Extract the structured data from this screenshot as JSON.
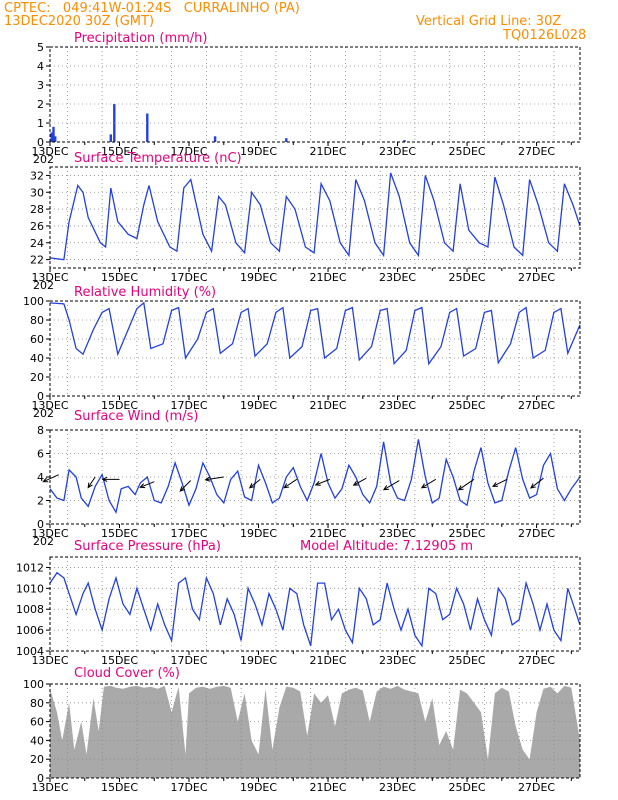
{
  "header": {
    "left_line1": "CPTEC:   049:41W-01:24S   CURRALINHO (PA)",
    "left_line2": "13DEC2020 30Z (GMT)",
    "right_line1": "Vertical Grid Line: 30Z",
    "right_line2": "TQ0126L028"
  },
  "x_axis": {
    "labels": [
      "13DEC",
      "15DEC",
      "17DEC",
      "19DEC",
      "21DEC",
      "23DEC",
      "25DEC",
      "27DEC"
    ],
    "label_days": [
      0,
      2,
      4,
      6,
      8,
      10,
      12,
      14
    ],
    "range_days": [
      0,
      15.25
    ],
    "below_label": "202"
  },
  "colors": {
    "line": "#2340e0",
    "title": "#e6007e",
    "header": "#ff8c00",
    "cloud": "#a9a9a9"
  },
  "chart_data": [
    {
      "type": "bar",
      "title": "Precipitation (mm/h)",
      "ylim": [
        0,
        5
      ],
      "yticks": [
        "0",
        "1",
        "2",
        "3",
        "4",
        "5"
      ],
      "series": [
        {
          "x_days": [
            0.05,
            0.1,
            0.15,
            1.75,
            1.85,
            2.8,
            4.75,
            6.8,
            10.2
          ],
          "values": [
            0.5,
            0.8,
            0.3,
            0.4,
            2.0,
            1.5,
            0.3,
            0.2,
            0.1
          ]
        }
      ]
    },
    {
      "type": "line",
      "title": "Surface Temperature (nC)",
      "ylim": [
        21,
        33
      ],
      "yticks": [
        "22",
        "24",
        "26",
        "28",
        "30",
        "32"
      ],
      "series": [
        {
          "x_days": [
            0,
            0.4,
            0.55,
            0.8,
            0.95,
            1.1,
            1.45,
            1.6,
            1.75,
            1.95,
            2.25,
            2.5,
            2.7,
            2.85,
            3.1,
            3.45,
            3.65,
            3.85,
            4.05,
            4.4,
            4.65,
            4.85,
            5.05,
            5.35,
            5.6,
            5.8,
            6.05,
            6.35,
            6.6,
            6.8,
            7.05,
            7.35,
            7.6,
            7.8,
            8.05,
            8.35,
            8.6,
            8.8,
            9.05,
            9.35,
            9.6,
            9.8,
            10.05,
            10.35,
            10.6,
            10.8,
            11.05,
            11.35,
            11.6,
            11.8,
            12.05,
            12.35,
            12.6,
            12.8,
            13.05,
            13.35,
            13.6,
            13.8,
            14.05,
            14.35,
            14.6,
            14.8,
            15.05,
            15.25
          ],
          "values": [
            22.2,
            22.0,
            26.5,
            30.8,
            30.0,
            27.0,
            24.0,
            23.5,
            30.5,
            26.5,
            25.0,
            24.5,
            28.5,
            30.8,
            26.5,
            23.5,
            23.0,
            30.5,
            31.5,
            25.0,
            23.0,
            29.5,
            28.5,
            24.0,
            22.8,
            30.0,
            28.5,
            24.0,
            23.0,
            29.5,
            28.0,
            23.5,
            22.8,
            31.0,
            29.0,
            24.0,
            22.5,
            31.5,
            29.0,
            24.0,
            22.5,
            32.3,
            29.5,
            24.0,
            22.5,
            32.0,
            29.0,
            24.0,
            23.0,
            31.0,
            25.5,
            24.0,
            23.5,
            31.8,
            28.5,
            23.5,
            22.5,
            31.5,
            28.5,
            24.0,
            23.0,
            31.0,
            28.5,
            26.0
          ]
        }
      ]
    },
    {
      "type": "line",
      "title": "Relative Humidity (%)",
      "ylim": [
        0,
        100
      ],
      "yticks": [
        "0",
        "20",
        "40",
        "60",
        "80",
        "100"
      ],
      "series": [
        {
          "x_days": [
            0,
            0.4,
            0.55,
            0.75,
            0.95,
            1.25,
            1.5,
            1.7,
            1.95,
            2.25,
            2.5,
            2.7,
            2.9,
            3.25,
            3.5,
            3.7,
            3.9,
            4.25,
            4.5,
            4.7,
            4.9,
            5.25,
            5.5,
            5.7,
            5.9,
            6.25,
            6.5,
            6.7,
            6.9,
            7.25,
            7.5,
            7.7,
            7.9,
            8.25,
            8.5,
            8.7,
            8.9,
            9.25,
            9.5,
            9.7,
            9.9,
            10.25,
            10.5,
            10.7,
            10.9,
            11.25,
            11.5,
            11.7,
            11.9,
            12.25,
            12.5,
            12.7,
            12.9,
            13.25,
            13.5,
            13.7,
            13.9,
            14.25,
            14.5,
            14.7,
            14.9,
            15.25
          ],
          "values": [
            98,
            97,
            80,
            50,
            44,
            70,
            88,
            92,
            44,
            70,
            92,
            98,
            50,
            55,
            90,
            93,
            40,
            60,
            88,
            92,
            45,
            55,
            88,
            92,
            42,
            55,
            88,
            93,
            40,
            52,
            90,
            92,
            40,
            50,
            90,
            93,
            38,
            52,
            90,
            92,
            34,
            48,
            90,
            93,
            34,
            52,
            88,
            92,
            42,
            50,
            88,
            90,
            35,
            55,
            88,
            93,
            40,
            48,
            88,
            92,
            45,
            75
          ]
        }
      ]
    },
    {
      "type": "line",
      "title": "Surface Wind (m/s)",
      "ylim": [
        0,
        8
      ],
      "yticks": [
        "0",
        "2",
        "4",
        "6",
        "8"
      ],
      "series": [
        {
          "x_days": [
            0,
            0.2,
            0.4,
            0.55,
            0.75,
            0.9,
            1.1,
            1.3,
            1.5,
            1.7,
            1.9,
            2.05,
            2.25,
            2.45,
            2.6,
            2.8,
            3.0,
            3.2,
            3.4,
            3.6,
            3.8,
            4.0,
            4.2,
            4.4,
            4.6,
            4.8,
            5.0,
            5.2,
            5.4,
            5.6,
            5.8,
            6.0,
            6.2,
            6.4,
            6.6,
            6.8,
            7.0,
            7.2,
            7.4,
            7.6,
            7.8,
            8.0,
            8.2,
            8.4,
            8.6,
            8.8,
            9.0,
            9.2,
            9.4,
            9.6,
            9.8,
            10.0,
            10.2,
            10.4,
            10.6,
            10.8,
            11.0,
            11.2,
            11.4,
            11.6,
            11.8,
            12.0,
            12.2,
            12.4,
            12.6,
            12.8,
            13.0,
            13.2,
            13.4,
            13.6,
            13.8,
            14.0,
            14.2,
            14.4,
            14.6,
            14.8,
            15.0,
            15.25
          ],
          "values": [
            3.0,
            2.2,
            2.0,
            4.6,
            4.0,
            2.2,
            1.5,
            3.2,
            4.2,
            2.0,
            1.0,
            3.0,
            3.2,
            2.5,
            3.5,
            4.0,
            2.0,
            1.8,
            3.2,
            5.2,
            3.5,
            1.6,
            3.0,
            5.2,
            4.0,
            2.5,
            1.8,
            3.8,
            4.5,
            2.3,
            2.0,
            5.0,
            3.5,
            1.8,
            2.2,
            4.0,
            4.8,
            3.2,
            2.0,
            3.5,
            6.0,
            3.5,
            2.2,
            3.0,
            5.0,
            4.0,
            2.5,
            1.8,
            3.2,
            7.0,
            3.5,
            2.2,
            2.0,
            3.8,
            7.2,
            4.0,
            1.8,
            2.2,
            5.5,
            4.0,
            2.0,
            1.6,
            4.5,
            6.5,
            3.5,
            1.8,
            2.0,
            4.5,
            6.5,
            3.8,
            2.2,
            2.5,
            5.0,
            6.0,
            3.0,
            2.0,
            3.0,
            4.0
          ]
        }
      ],
      "arrows": {
        "x_days": [
          0.25,
          1.3,
          2.0,
          3.0,
          4.05,
          5.0,
          6.05,
          7.1,
          8.05,
          9.1,
          10.05,
          11.1,
          12.2,
          13.15,
          14.2
        ],
        "u": [
          -2.2,
          -1.0,
          -2.4,
          -2.0,
          -1.5,
          -2.6,
          -1.5,
          -1.8,
          -2.0,
          -1.8,
          -2.2,
          -2.0,
          -2.2,
          -2.0,
          -1.8
        ],
        "v": [
          -1.0,
          -1.5,
          0.0,
          -0.8,
          -1.5,
          -0.4,
          -1.2,
          -1.2,
          -0.8,
          -1.0,
          -1.3,
          -1.2,
          -1.5,
          -1.0,
          -1.4
        ],
        "y": [
          4.2,
          4.0,
          3.8,
          3.6,
          3.7,
          4.0,
          3.8,
          3.8,
          3.8,
          3.9,
          3.7,
          3.8,
          3.8,
          3.8,
          3.9
        ]
      }
    },
    {
      "type": "line",
      "title": "Surface Pressure (hPa)",
      "annotation": "Model Altitude: 7.12905  m",
      "ylim": [
        1004,
        1013
      ],
      "yticks": [
        "1004",
        "1006",
        "1008",
        "1010",
        "1012"
      ],
      "series": [
        {
          "x_days": [
            0,
            0.2,
            0.4,
            0.55,
            0.75,
            0.95,
            1.1,
            1.3,
            1.5,
            1.7,
            1.9,
            2.1,
            2.3,
            2.5,
            2.7,
            2.9,
            3.1,
            3.3,
            3.5,
            3.7,
            3.9,
            4.1,
            4.3,
            4.5,
            4.7,
            4.9,
            5.1,
            5.3,
            5.5,
            5.7,
            5.9,
            6.1,
            6.3,
            6.5,
            6.7,
            6.9,
            7.1,
            7.3,
            7.5,
            7.7,
            7.9,
            8.1,
            8.3,
            8.5,
            8.7,
            8.9,
            9.1,
            9.3,
            9.5,
            9.7,
            9.9,
            10.1,
            10.3,
            10.5,
            10.7,
            10.9,
            11.1,
            11.3,
            11.5,
            11.7,
            11.9,
            12.1,
            12.3,
            12.5,
            12.7,
            12.9,
            13.1,
            13.3,
            13.5,
            13.7,
            13.9,
            14.1,
            14.3,
            14.5,
            14.7,
            14.9,
            15.1,
            15.25
          ],
          "values": [
            1010.5,
            1011.5,
            1011.0,
            1009.5,
            1007.5,
            1009.5,
            1010.5,
            1008.0,
            1006.0,
            1009.0,
            1011.0,
            1008.5,
            1007.5,
            1010.0,
            1008.0,
            1006.0,
            1008.5,
            1006.5,
            1005.0,
            1010.5,
            1011.0,
            1008.0,
            1007.0,
            1011.0,
            1009.5,
            1006.5,
            1009.0,
            1007.5,
            1005.0,
            1010.0,
            1008.5,
            1006.5,
            1009.5,
            1008.0,
            1006.0,
            1010.0,
            1009.5,
            1006.5,
            1004.5,
            1010.5,
            1010.5,
            1007.0,
            1008.0,
            1006.0,
            1004.8,
            1010.0,
            1009.0,
            1006.5,
            1007.0,
            1010.5,
            1008.0,
            1006.0,
            1008.0,
            1005.5,
            1004.5,
            1010.0,
            1009.5,
            1007.0,
            1007.5,
            1010.0,
            1008.5,
            1006.0,
            1009.0,
            1007.0,
            1005.5,
            1010.0,
            1009.0,
            1006.5,
            1007.0,
            1010.5,
            1008.5,
            1006.0,
            1008.5,
            1006.0,
            1005.0,
            1010.0,
            1008.0,
            1006.5
          ]
        }
      ]
    },
    {
      "type": "area",
      "title": "Cloud Cover (%)",
      "ylim": [
        0,
        100
      ],
      "yticks": [
        "0",
        "20",
        "40",
        "60",
        "80",
        "100"
      ],
      "series": [
        {
          "x_days": [
            0,
            0.2,
            0.35,
            0.55,
            0.7,
            0.9,
            1.05,
            1.25,
            1.4,
            1.55,
            1.75,
            1.9,
            2.1,
            2.3,
            2.5,
            2.7,
            2.9,
            3.1,
            3.3,
            3.5,
            3.7,
            3.9,
            4.0,
            4.2,
            4.4,
            4.6,
            4.8,
            5.0,
            5.2,
            5.4,
            5.6,
            5.8,
            6.0,
            6.2,
            6.4,
            6.6,
            6.8,
            7.0,
            7.2,
            7.4,
            7.6,
            7.8,
            8.0,
            8.2,
            8.4,
            8.6,
            8.8,
            9.0,
            9.2,
            9.4,
            9.6,
            9.8,
            10.0,
            10.2,
            10.4,
            10.6,
            10.8,
            11.0,
            11.2,
            11.4,
            11.6,
            11.8,
            12.0,
            12.2,
            12.4,
            12.6,
            12.8,
            13.0,
            13.2,
            13.4,
            13.6,
            13.8,
            14.0,
            14.2,
            14.4,
            14.6,
            14.8,
            15.0,
            15.25
          ],
          "values": [
            95,
            70,
            40,
            80,
            30,
            60,
            25,
            85,
            50,
            97,
            98,
            96,
            95,
            97,
            98,
            96,
            97,
            95,
            98,
            70,
            97,
            25,
            90,
            96,
            97,
            95,
            97,
            98,
            96,
            60,
            90,
            40,
            25,
            95,
            30,
            75,
            97,
            96,
            92,
            45,
            90,
            80,
            88,
            55,
            90,
            94,
            96,
            93,
            60,
            92,
            97,
            95,
            98,
            94,
            92,
            90,
            60,
            85,
            35,
            50,
            30,
            94,
            90,
            80,
            70,
            20,
            90,
            96,
            92,
            55,
            30,
            20,
            70,
            95,
            97,
            90,
            98,
            96,
            40
          ]
        }
      ]
    }
  ]
}
